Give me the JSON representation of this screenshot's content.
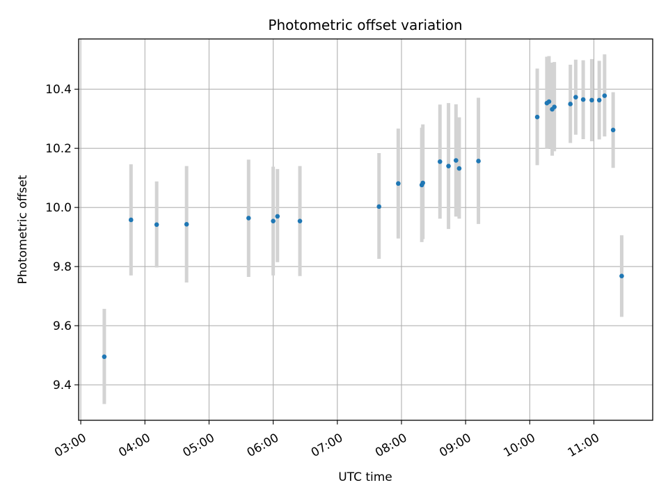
{
  "chart_data": {
    "type": "scatter",
    "title": "Photometric offset variation",
    "xlabel": "UTC time",
    "ylabel": "Photometric offset",
    "x_axis_type": "time",
    "xlim": [
      "02:58",
      "11:55"
    ],
    "ylim": [
      9.28,
      10.57
    ],
    "grid": true,
    "colors": {
      "points": "#1f77b4",
      "errorbars": "#d3d3d3",
      "grid": "#b0b0b0"
    },
    "x_ticks": [
      "03:00",
      "04:00",
      "05:00",
      "06:00",
      "07:00",
      "08:00",
      "09:00",
      "10:00",
      "11:00"
    ],
    "y_ticks": [
      9.4,
      9.6,
      9.8,
      10.0,
      10.2,
      10.4
    ],
    "y_tick_labels": [
      "9.4",
      "9.6",
      "9.8",
      "10.0",
      "10.2",
      "10.4"
    ],
    "series": [
      {
        "points": [
          {
            "x": "03:22",
            "y": 9.495,
            "lo": 9.335,
            "hi": 9.657
          },
          {
            "x": "03:47",
            "y": 9.958,
            "lo": 9.77,
            "hi": 10.146
          },
          {
            "x": "04:11",
            "y": 9.942,
            "lo": 9.797,
            "hi": 10.088
          },
          {
            "x": "04:39",
            "y": 9.943,
            "lo": 9.746,
            "hi": 10.14
          },
          {
            "x": "05:37",
            "y": 9.964,
            "lo": 9.765,
            "hi": 10.162
          },
          {
            "x": "06:00",
            "y": 9.954,
            "lo": 9.77,
            "hi": 10.138
          },
          {
            "x": "06:04",
            "y": 9.97,
            "lo": 9.815,
            "hi": 10.13
          },
          {
            "x": "06:25",
            "y": 9.954,
            "lo": 9.768,
            "hi": 10.14
          },
          {
            "x": "07:39",
            "y": 10.003,
            "lo": 9.826,
            "hi": 10.184
          },
          {
            "x": "07:57",
            "y": 10.081,
            "lo": 9.895,
            "hi": 10.267
          },
          {
            "x": "08:19",
            "y": 10.076,
            "lo": 9.883,
            "hi": 10.27
          },
          {
            "x": "08:20",
            "y": 10.083,
            "lo": 9.893,
            "hi": 10.281
          },
          {
            "x": "08:36",
            "y": 10.155,
            "lo": 9.962,
            "hi": 10.348
          },
          {
            "x": "08:44",
            "y": 10.14,
            "lo": 9.927,
            "hi": 10.353
          },
          {
            "x": "08:51",
            "y": 10.159,
            "lo": 9.969,
            "hi": 10.349
          },
          {
            "x": "08:54",
            "y": 10.132,
            "lo": 9.962,
            "hi": 10.305
          },
          {
            "x": "09:12",
            "y": 10.157,
            "lo": 9.944,
            "hi": 10.371
          },
          {
            "x": "10:07",
            "y": 10.306,
            "lo": 10.143,
            "hi": 10.47
          },
          {
            "x": "10:16",
            "y": 10.353,
            "lo": 10.198,
            "hi": 10.51
          },
          {
            "x": "10:18",
            "y": 10.358,
            "lo": 10.202,
            "hi": 10.512
          },
          {
            "x": "10:21",
            "y": 10.332,
            "lo": 10.175,
            "hi": 10.49
          },
          {
            "x": "10:23",
            "y": 10.34,
            "lo": 10.19,
            "hi": 10.492
          },
          {
            "x": "10:38",
            "y": 10.35,
            "lo": 10.218,
            "hi": 10.483
          },
          {
            "x": "10:43",
            "y": 10.373,
            "lo": 10.246,
            "hi": 10.5
          },
          {
            "x": "10:50",
            "y": 10.365,
            "lo": 10.231,
            "hi": 10.498
          },
          {
            "x": "10:58",
            "y": 10.363,
            "lo": 10.224,
            "hi": 10.502
          },
          {
            "x": "11:05",
            "y": 10.363,
            "lo": 10.23,
            "hi": 10.496
          },
          {
            "x": "11:10",
            "y": 10.378,
            "lo": 10.24,
            "hi": 10.518
          },
          {
            "x": "11:18",
            "y": 10.262,
            "lo": 10.134,
            "hi": 10.39
          },
          {
            "x": "11:26",
            "y": 9.768,
            "lo": 9.63,
            "hi": 9.906
          }
        ]
      }
    ]
  }
}
